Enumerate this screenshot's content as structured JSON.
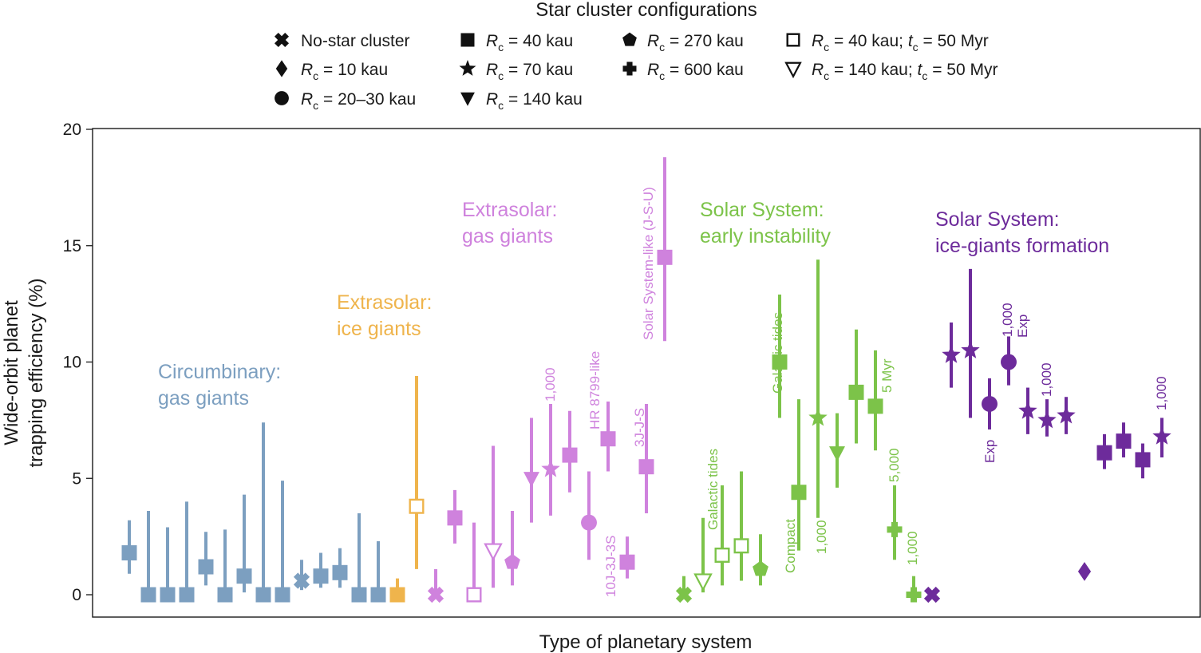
{
  "chart_data": {
    "type": "scatter",
    "title": "Star cluster configurations",
    "xlabel": "Type of planetary system",
    "ylabel_lines": [
      "Wide-orbit planet",
      "trapping efficiency (%)"
    ],
    "ylim": [
      0,
      20
    ],
    "yticks": [
      0,
      5,
      10,
      15,
      20
    ],
    "legend": [
      {
        "key": "none",
        "marker": "cross",
        "prefix": "No-star cluster",
        "sub": "",
        "suffix": ""
      },
      {
        "key": "r10",
        "marker": "diamond",
        "prefix": "R",
        "sub": "c",
        "suffix": " = 10 kau"
      },
      {
        "key": "r20",
        "marker": "circle",
        "prefix": "R",
        "sub": "c",
        "suffix": " = 20–30 kau"
      },
      {
        "key": "r40",
        "marker": "square",
        "prefix": "R",
        "sub": "c",
        "suffix": " = 40 kau"
      },
      {
        "key": "r70",
        "marker": "star",
        "prefix": "R",
        "sub": "c",
        "suffix": " = 70 kau"
      },
      {
        "key": "r140",
        "marker": "triangle-down",
        "prefix": "R",
        "sub": "c",
        "suffix": " = 140 kau"
      },
      {
        "key": "r270",
        "marker": "pentagon",
        "prefix": "R",
        "sub": "c",
        "suffix": " = 270 kau"
      },
      {
        "key": "r600",
        "marker": "plus",
        "prefix": "R",
        "sub": "c",
        "suffix": " = 600 kau"
      },
      {
        "key": "r40t",
        "marker": "square-open",
        "prefix": "R",
        "sub": "c",
        "suffix": " = 40 kau; ",
        "prefix2": "t",
        "sub2": "c",
        "suffix2": " = 50 Myr"
      },
      {
        "key": "r140t",
        "marker": "triangle-down-open",
        "prefix": "R",
        "sub": "c",
        "suffix": " = 140 kau; ",
        "prefix2": "t",
        "sub2": "c",
        "suffix2": " = 50 Myr"
      }
    ],
    "groups": [
      {
        "name": "Circumbinary: gas giants",
        "lines": [
          "Circumbinary:",
          "gas giants"
        ],
        "color": "#7c9fc0"
      },
      {
        "name": "Extrasolar: ice giants",
        "lines": [
          "Extrasolar:",
          "ice giants"
        ],
        "color": "#efb44c"
      },
      {
        "name": "Extrasolar: gas giants",
        "lines": [
          "Extrasolar:",
          "gas giants"
        ],
        "color": "#cf82dd"
      },
      {
        "name": "Solar System: early instability",
        "lines": [
          "Solar System:",
          "early instability"
        ],
        "color": "#7cc349"
      },
      {
        "name": "Solar System: ice-giants formation",
        "lines": [
          "Solar System:",
          "ice-giants formation"
        ],
        "color": "#6d2b9b"
      }
    ],
    "points": [
      {
        "group": 0,
        "marker": "square",
        "y": 1.8,
        "lo": 0.9,
        "hi": 3.2
      },
      {
        "group": 0,
        "marker": "square",
        "y": 0,
        "lo": 0,
        "hi": 3.6
      },
      {
        "group": 0,
        "marker": "square",
        "y": 0,
        "lo": 0,
        "hi": 2.9
      },
      {
        "group": 0,
        "marker": "square",
        "y": 0,
        "lo": 0,
        "hi": 4.0
      },
      {
        "group": 0,
        "marker": "square",
        "y": 1.2,
        "lo": 0.4,
        "hi": 2.7
      },
      {
        "group": 0,
        "marker": "square",
        "y": 0,
        "lo": 0,
        "hi": 2.8
      },
      {
        "group": 0,
        "marker": "square",
        "y": 0.8,
        "lo": 0.1,
        "hi": 4.3
      },
      {
        "group": 0,
        "marker": "square",
        "y": 0,
        "lo": 0,
        "hi": 7.4
      },
      {
        "group": 0,
        "marker": "square",
        "y": 0,
        "lo": 0,
        "hi": 4.9
      },
      {
        "group": 0,
        "marker": "cross",
        "y": 0.6,
        "lo": 0.2,
        "hi": 1.5
      },
      {
        "group": 0,
        "marker": "square",
        "y": 0.8,
        "lo": 0.3,
        "hi": 1.8
      },
      {
        "group": 0,
        "marker": "square",
        "y": 0.95,
        "lo": 0.3,
        "hi": 2.0
      },
      {
        "group": 0,
        "marker": "square",
        "y": 0,
        "lo": 0,
        "hi": 3.5
      },
      {
        "group": 0,
        "marker": "square",
        "y": 0,
        "lo": 0,
        "hi": 2.3
      },
      {
        "group": 1,
        "marker": "square",
        "y": 0,
        "lo": 0,
        "hi": 0.7
      },
      {
        "group": 1,
        "marker": "square-open",
        "y": 3.8,
        "lo": 1.1,
        "hi": 9.4
      },
      {
        "group": 2,
        "marker": "cross",
        "y": 0,
        "lo": 0,
        "hi": 1.1
      },
      {
        "group": 2,
        "marker": "square",
        "y": 3.3,
        "lo": 2.2,
        "hi": 4.5
      },
      {
        "group": 2,
        "marker": "square-open",
        "y": 0,
        "lo": 0,
        "hi": 3.1
      },
      {
        "group": 2,
        "marker": "triangle-down-open",
        "y": 1.9,
        "lo": 0.3,
        "hi": 6.4
      },
      {
        "group": 2,
        "marker": "pentagon",
        "y": 1.4,
        "lo": 0.4,
        "hi": 3.6
      },
      {
        "group": 2,
        "marker": "triangle-down",
        "y": 5.0,
        "lo": 3.1,
        "hi": 7.6
      },
      {
        "group": 2,
        "marker": "star",
        "y": 5.4,
        "lo": 3.4,
        "hi": 8.2
      },
      {
        "group": 2,
        "marker": "square",
        "y": 6.0,
        "lo": 4.4,
        "hi": 7.9
      },
      {
        "group": 2,
        "marker": "circle",
        "y": 3.1,
        "lo": 1.5,
        "hi": 5.3
      },
      {
        "group": 2,
        "marker": "square",
        "y": 6.7,
        "lo": 5.3,
        "hi": 8.3
      },
      {
        "group": 2,
        "marker": "square",
        "y": 1.4,
        "lo": 0.7,
        "hi": 2.5
      },
      {
        "group": 2,
        "marker": "square",
        "y": 5.5,
        "lo": 3.5,
        "hi": 8.2
      },
      {
        "group": 2,
        "marker": "square",
        "y": 14.5,
        "lo": 10.9,
        "hi": 18.8
      },
      {
        "group": 3,
        "marker": "cross",
        "y": 0,
        "lo": 0,
        "hi": 0.8
      },
      {
        "group": 3,
        "marker": "triangle-down-open",
        "y": 0.6,
        "lo": 0.1,
        "hi": 3.3
      },
      {
        "group": 3,
        "marker": "square-open",
        "y": 1.7,
        "lo": 0.4,
        "hi": 4.7
      },
      {
        "group": 3,
        "marker": "square-open",
        "y": 2.1,
        "lo": 0.6,
        "hi": 5.3
      },
      {
        "group": 3,
        "marker": "pentagon",
        "y": 1.1,
        "lo": 0.4,
        "hi": 2.6
      },
      {
        "group": 3,
        "marker": "square",
        "y": 10.0,
        "lo": 7.6,
        "hi": 12.9
      },
      {
        "group": 3,
        "marker": "square",
        "y": 4.4,
        "lo": 1.9,
        "hi": 8.4
      },
      {
        "group": 3,
        "marker": "star",
        "y": 7.6,
        "lo": 3.3,
        "hi": 14.4
      },
      {
        "group": 3,
        "marker": "triangle-down",
        "y": 6.1,
        "lo": 4.6,
        "hi": 7.8
      },
      {
        "group": 3,
        "marker": "square",
        "y": 8.7,
        "lo": 6.5,
        "hi": 11.4
      },
      {
        "group": 3,
        "marker": "square",
        "y": 8.1,
        "lo": 6.2,
        "hi": 10.5
      },
      {
        "group": 3,
        "marker": "plus",
        "y": 2.8,
        "lo": 1.5,
        "hi": 4.7
      },
      {
        "group": 3,
        "marker": "plus",
        "y": 0,
        "lo": 0,
        "hi": 0.8
      },
      {
        "group": 4,
        "marker": "cross",
        "y": 0,
        "lo": 0,
        "hi": 0
      },
      {
        "group": 4,
        "marker": "star",
        "y": 10.3,
        "lo": 8.9,
        "hi": 11.7
      },
      {
        "group": 4,
        "marker": "star",
        "y": 10.5,
        "lo": 7.6,
        "hi": 14.0
      },
      {
        "group": 4,
        "marker": "circle",
        "y": 8.2,
        "lo": 7.1,
        "hi": 9.3
      },
      {
        "group": 4,
        "marker": "circle",
        "y": 10.0,
        "lo": 9.0,
        "hi": 11.1
      },
      {
        "group": 4,
        "marker": "star",
        "y": 7.9,
        "lo": 6.9,
        "hi": 8.9
      },
      {
        "group": 4,
        "marker": "star",
        "y": 7.5,
        "lo": 6.8,
        "hi": 8.4
      },
      {
        "group": 4,
        "marker": "star",
        "y": 7.7,
        "lo": 6.9,
        "hi": 8.5
      },
      {
        "group": 4,
        "marker": "diamond",
        "y": 1.0,
        "lo": 1.0,
        "hi": 1.0
      },
      {
        "group": 4,
        "marker": "square",
        "y": 6.1,
        "lo": 5.4,
        "hi": 6.9
      },
      {
        "group": 4,
        "marker": "square",
        "y": 6.6,
        "lo": 5.9,
        "hi": 7.4
      },
      {
        "group": 4,
        "marker": "square",
        "y": 5.8,
        "lo": 5.0,
        "hi": 6.5
      },
      {
        "group": 4,
        "marker": "star",
        "y": 6.8,
        "lo": 5.9,
        "hi": 7.6
      }
    ],
    "annotations": [
      {
        "text": "1,000",
        "group": 2
      },
      {
        "text": "HR 8799-like",
        "group": 2
      },
      {
        "text": "3J-J-S",
        "group": 2
      },
      {
        "text": "10J-3J-3S",
        "group": 2
      },
      {
        "text": "Solar System-like (J-S-U)",
        "group": 2
      },
      {
        "text": "Galactic tides",
        "group": 3
      },
      {
        "text": "Galactic tides",
        "group": 3
      },
      {
        "text": "Compact",
        "group": 3
      },
      {
        "text": "1,000",
        "group": 3
      },
      {
        "text": "5 Myr",
        "group": 3
      },
      {
        "text": "5,000",
        "group": 3
      },
      {
        "text": "1,000",
        "group": 3
      },
      {
        "text": "Exp",
        "group": 4
      },
      {
        "text": "1,000",
        "group": 4
      },
      {
        "text": "Exp",
        "group": 4
      },
      {
        "text": "1,000",
        "group": 4
      },
      {
        "text": "1,000",
        "group": 4
      }
    ]
  }
}
